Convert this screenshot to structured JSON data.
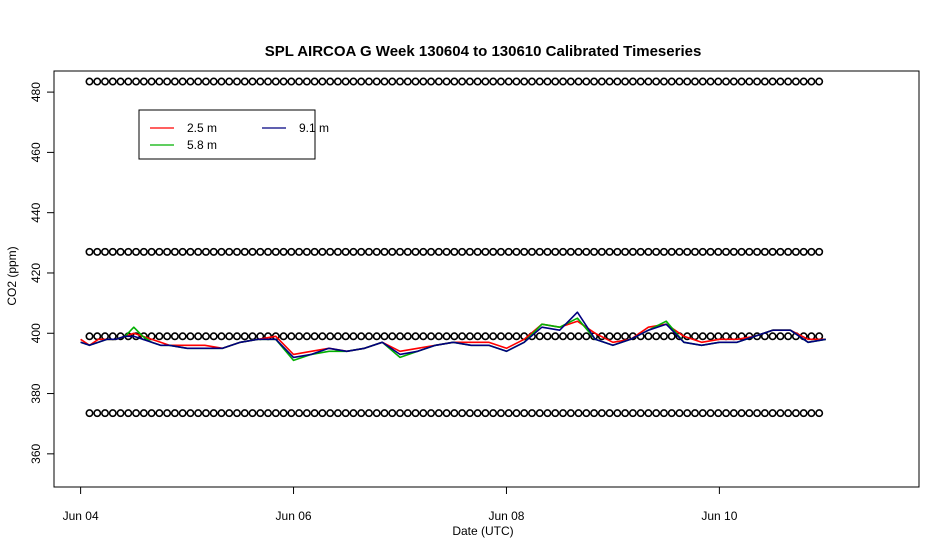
{
  "chart_data": {
    "type": "line",
    "title": "SPL AIRCOA G  Week 130604 to 130610  Calibrated Timeseries",
    "xlabel": "Date (UTC)",
    "ylabel": "CO2 (ppm)",
    "x_ticks": [
      {
        "day": 4,
        "label": "Jun 04"
      },
      {
        "day": 6,
        "label": "Jun 06"
      },
      {
        "day": 8,
        "label": "Jun 08"
      },
      {
        "day": 10,
        "label": "Jun 10"
      }
    ],
    "y_ticks": [
      360,
      380,
      400,
      420,
      440,
      460,
      480
    ],
    "xlim": [
      "Jun 03 18:00",
      "Jun 11 21:00"
    ],
    "ylim": [
      349,
      487
    ],
    "legend": {
      "position": "top-left",
      "entries": [
        {
          "name": "2.5 m",
          "color": "#ff0000"
        },
        {
          "name": "5.8 m",
          "color": "#00b000"
        },
        {
          "name": "9.1 m",
          "color": "#000080"
        }
      ]
    },
    "series": [
      {
        "name": "2.5 m",
        "color": "#ff0000",
        "points": [
          [
            "Jun 04 00:00",
            398
          ],
          [
            "Jun 04 02:00",
            396
          ],
          [
            "Jun 04 04:00",
            398
          ],
          [
            "Jun 04 06:00",
            398
          ],
          [
            "Jun 04 08:00",
            398
          ],
          [
            "Jun 04 10:00",
            399
          ],
          [
            "Jun 04 12:00",
            400
          ],
          [
            "Jun 04 14:00",
            399
          ],
          [
            "Jun 04 16:00",
            398
          ],
          [
            "Jun 04 18:00",
            397
          ],
          [
            "Jun 04 20:00",
            396
          ],
          [
            "Jun 05 00:00",
            396
          ],
          [
            "Jun 05 04:00",
            396
          ],
          [
            "Jun 05 08:00",
            395
          ],
          [
            "Jun 05 12:00",
            397
          ],
          [
            "Jun 05 16:00",
            398
          ],
          [
            "Jun 05 20:00",
            399
          ],
          [
            "Jun 06 00:00",
            393
          ],
          [
            "Jun 06 04:00",
            394
          ],
          [
            "Jun 06 08:00",
            395
          ],
          [
            "Jun 06 12:00",
            394
          ],
          [
            "Jun 06 16:00",
            395
          ],
          [
            "Jun 06 20:00",
            397
          ],
          [
            "Jun 07 00:00",
            394
          ],
          [
            "Jun 07 04:00",
            395
          ],
          [
            "Jun 07 08:00",
            396
          ],
          [
            "Jun 07 12:00",
            397
          ],
          [
            "Jun 07 16:00",
            397
          ],
          [
            "Jun 07 20:00",
            397
          ],
          [
            "Jun 08 00:00",
            395
          ],
          [
            "Jun 08 04:00",
            398
          ],
          [
            "Jun 08 08:00",
            403
          ],
          [
            "Jun 08 12:00",
            402
          ],
          [
            "Jun 08 16:00",
            404
          ],
          [
            "Jun 08 20:00",
            400
          ],
          [
            "Jun 09 00:00",
            397
          ],
          [
            "Jun 09 04:00",
            398
          ],
          [
            "Jun 09 08:00",
            402
          ],
          [
            "Jun 09 12:00",
            403
          ],
          [
            "Jun 09 16:00",
            399
          ],
          [
            "Jun 09 20:00",
            397
          ],
          [
            "Jun 10 00:00",
            398
          ],
          [
            "Jun 10 04:00",
            398
          ],
          [
            "Jun 10 08:00",
            399
          ],
          [
            "Jun 10 12:00",
            401
          ],
          [
            "Jun 10 16:00",
            401
          ],
          [
            "Jun 10 20:00",
            398
          ],
          [
            "Jun 11 00:00",
            398
          ]
        ]
      },
      {
        "name": "5.8 m",
        "color": "#00b000",
        "points": [
          [
            "Jun 04 00:00",
            397
          ],
          [
            "Jun 04 02:00",
            396
          ],
          [
            "Jun 04 04:00",
            397
          ],
          [
            "Jun 04 06:00",
            398
          ],
          [
            "Jun 04 08:00",
            398
          ],
          [
            "Jun 04 10:00",
            399
          ],
          [
            "Jun 04 12:00",
            402
          ],
          [
            "Jun 04 14:00",
            399
          ],
          [
            "Jun 04 16:00",
            397
          ],
          [
            "Jun 04 18:00",
            396
          ],
          [
            "Jun 04 20:00",
            396
          ],
          [
            "Jun 05 00:00",
            395
          ],
          [
            "Jun 05 04:00",
            395
          ],
          [
            "Jun 05 08:00",
            395
          ],
          [
            "Jun 05 12:00",
            397
          ],
          [
            "Jun 05 16:00",
            398
          ],
          [
            "Jun 05 20:00",
            398
          ],
          [
            "Jun 06 00:00",
            391
          ],
          [
            "Jun 06 04:00",
            393
          ],
          [
            "Jun 06 08:00",
            394
          ],
          [
            "Jun 06 12:00",
            394
          ],
          [
            "Jun 06 16:00",
            395
          ],
          [
            "Jun 06 20:00",
            397
          ],
          [
            "Jun 07 00:00",
            392
          ],
          [
            "Jun 07 04:00",
            394
          ],
          [
            "Jun 07 08:00",
            396
          ],
          [
            "Jun 07 12:00",
            397
          ],
          [
            "Jun 07 16:00",
            396
          ],
          [
            "Jun 07 20:00",
            396
          ],
          [
            "Jun 08 00:00",
            394
          ],
          [
            "Jun 08 04:00",
            397
          ],
          [
            "Jun 08 08:00",
            403
          ],
          [
            "Jun 08 12:00",
            402
          ],
          [
            "Jun 08 16:00",
            405
          ],
          [
            "Jun 08 20:00",
            398
          ],
          [
            "Jun 09 00:00",
            396
          ],
          [
            "Jun 09 04:00",
            398
          ],
          [
            "Jun 09 08:00",
            401
          ],
          [
            "Jun 09 12:00",
            404
          ],
          [
            "Jun 09 16:00",
            397
          ],
          [
            "Jun 09 20:00",
            396
          ],
          [
            "Jun 10 00:00",
            397
          ],
          [
            "Jun 10 04:00",
            397
          ],
          [
            "Jun 10 08:00",
            399
          ],
          [
            "Jun 10 12:00",
            401
          ],
          [
            "Jun 10 16:00",
            401
          ],
          [
            "Jun 10 20:00",
            397
          ],
          [
            "Jun 11 00:00",
            398
          ]
        ]
      },
      {
        "name": "9.1 m",
        "color": "#000080",
        "points": [
          [
            "Jun 04 00:00",
            397
          ],
          [
            "Jun 04 02:00",
            396
          ],
          [
            "Jun 04 04:00",
            397
          ],
          [
            "Jun 04 06:00",
            398
          ],
          [
            "Jun 04 08:00",
            398
          ],
          [
            "Jun 04 10:00",
            399
          ],
          [
            "Jun 04 12:00",
            399
          ],
          [
            "Jun 04 14:00",
            398
          ],
          [
            "Jun 04 16:00",
            397
          ],
          [
            "Jun 04 18:00",
            396
          ],
          [
            "Jun 04 20:00",
            396
          ],
          [
            "Jun 05 00:00",
            395
          ],
          [
            "Jun 05 04:00",
            395
          ],
          [
            "Jun 05 08:00",
            395
          ],
          [
            "Jun 05 12:00",
            397
          ],
          [
            "Jun 05 16:00",
            398
          ],
          [
            "Jun 05 20:00",
            398
          ],
          [
            "Jun 06 00:00",
            392
          ],
          [
            "Jun 06 04:00",
            393
          ],
          [
            "Jun 06 08:00",
            395
          ],
          [
            "Jun 06 12:00",
            394
          ],
          [
            "Jun 06 16:00",
            395
          ],
          [
            "Jun 06 20:00",
            397
          ],
          [
            "Jun 07 00:00",
            393
          ],
          [
            "Jun 07 04:00",
            394
          ],
          [
            "Jun 07 08:00",
            396
          ],
          [
            "Jun 07 12:00",
            397
          ],
          [
            "Jun 07 16:00",
            396
          ],
          [
            "Jun 07 20:00",
            396
          ],
          [
            "Jun 08 00:00",
            394
          ],
          [
            "Jun 08 04:00",
            397
          ],
          [
            "Jun 08 08:00",
            402
          ],
          [
            "Jun 08 12:00",
            401
          ],
          [
            "Jun 08 16:00",
            407
          ],
          [
            "Jun 08 20:00",
            398
          ],
          [
            "Jun 09 00:00",
            396
          ],
          [
            "Jun 09 04:00",
            398
          ],
          [
            "Jun 09 08:00",
            401
          ],
          [
            "Jun 09 12:00",
            403
          ],
          [
            "Jun 09 16:00",
            397
          ],
          [
            "Jun 09 20:00",
            396
          ],
          [
            "Jun 10 00:00",
            397
          ],
          [
            "Jun 10 04:00",
            397
          ],
          [
            "Jun 10 08:00",
            399
          ],
          [
            "Jun 10 12:00",
            401
          ],
          [
            "Jun 10 16:00",
            401
          ],
          [
            "Jun 10 20:00",
            397
          ],
          [
            "Jun 11 00:00",
            398
          ]
        ]
      },
      {
        "name": "",
        "marker": "open-circle",
        "color": "#000000",
        "levels": [
          483.5,
          427,
          399,
          373.5
        ],
        "x_range": [
          "Jun 04 02:00",
          "Jun 10 23:30"
        ],
        "approx_interval": "1 h 45 min"
      }
    ]
  }
}
